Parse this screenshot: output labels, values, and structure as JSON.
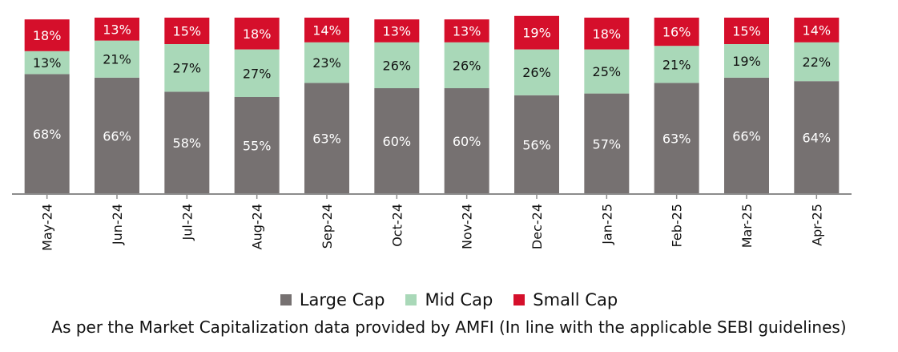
{
  "chart_data": {
    "type": "bar",
    "stacked": true,
    "categories": [
      "May-24",
      "Jun-24",
      "Jul-24",
      "Aug-24",
      "Sep-24",
      "Oct-24",
      "Nov-24",
      "Dec-24",
      "Jan-25",
      "Feb-25",
      "Mar-25",
      "Apr-25"
    ],
    "series": [
      {
        "name": "Large Cap",
        "color": "#767171",
        "values": [
          68,
          66,
          58,
          55,
          63,
          60,
          60,
          56,
          57,
          63,
          66,
          64
        ]
      },
      {
        "name": "Mid Cap",
        "color": "#a9d8b8",
        "values": [
          13,
          21,
          27,
          27,
          23,
          26,
          26,
          26,
          25,
          21,
          19,
          22
        ]
      },
      {
        "name": "Small Cap",
        "color": "#d50f2b",
        "values": [
          18,
          13,
          15,
          18,
          14,
          13,
          13,
          19,
          18,
          16,
          15,
          14
        ]
      }
    ],
    "value_suffix": "%",
    "ylim": [
      0,
      100
    ],
    "grid": false,
    "legend_position": "bottom"
  },
  "footnote": "As per the Market Capitalization data provided by AMFI (In line with the applicable SEBI guidelines)"
}
